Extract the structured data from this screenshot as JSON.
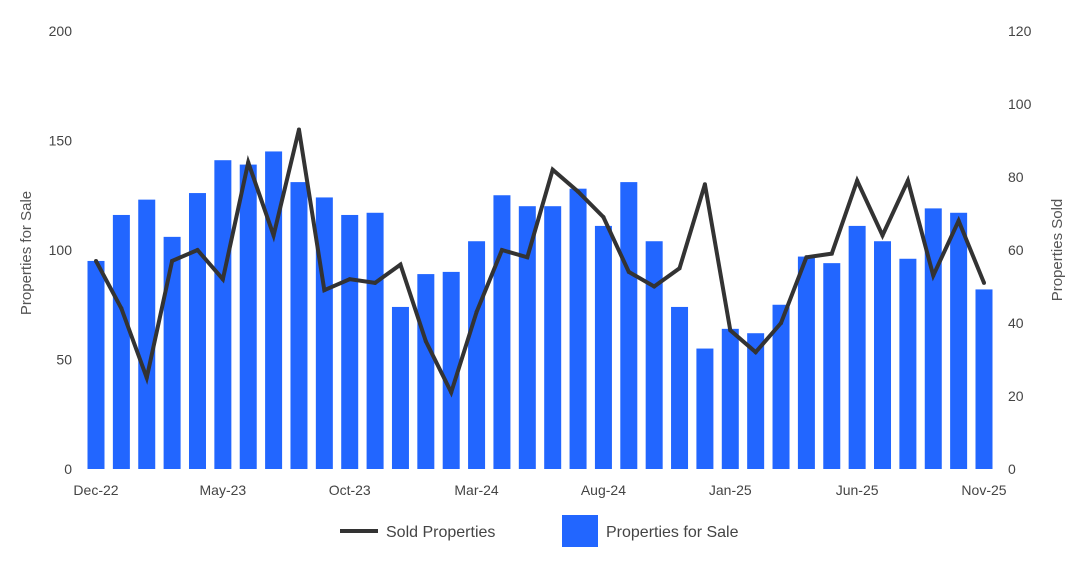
{
  "chart_data": {
    "type": "bar+line",
    "title": "",
    "x_tick_labels": [
      "Dec-22",
      "May-23",
      "Oct-23",
      "Mar-24",
      "Aug-24",
      "Jan-25",
      "Jun-25",
      "Nov-25"
    ],
    "categories": [
      "Dec-22",
      "Jan-23",
      "Feb-23",
      "Mar-23",
      "Apr-23",
      "May-23",
      "Jun-23",
      "Jul-23",
      "Aug-23",
      "Sep-23",
      "Oct-23",
      "Nov-23",
      "Dec-23",
      "Jan-24",
      "Feb-24",
      "Mar-24",
      "Apr-24",
      "May-24",
      "Jun-24",
      "Jul-24",
      "Aug-24",
      "Sep-24",
      "Oct-24",
      "Nov-24",
      "Dec-24",
      "Jan-25",
      "Feb-25",
      "Mar-25",
      "Apr-25",
      "May-25",
      "Jun-25",
      "Jul-25",
      "Aug-25",
      "Sep-25",
      "Oct-25",
      "Nov-25"
    ],
    "series": [
      {
        "name": "Properties for Sale",
        "type": "bar",
        "axis": "left",
        "color": "#2266ff",
        "values": [
          95,
          116,
          123,
          106,
          126,
          141,
          139,
          145,
          131,
          124,
          116,
          117,
          74,
          89,
          90,
          104,
          125,
          120,
          120,
          128,
          111,
          131,
          104,
          74,
          55,
          64,
          62,
          75,
          97,
          94,
          111,
          104,
          96,
          119,
          117,
          82
        ]
      },
      {
        "name": "Sold Properties",
        "type": "line",
        "axis": "right",
        "color": "#333333",
        "values": [
          57,
          44,
          25,
          57,
          60,
          52,
          84,
          64,
          93,
          49,
          52,
          51,
          56,
          35,
          21,
          43,
          60,
          58,
          82,
          76,
          69,
          54,
          50,
          55,
          78,
          38,
          32,
          40,
          58,
          59,
          79,
          64,
          79,
          53,
          68,
          51
        ]
      }
    ],
    "y_left": {
      "label": "Properties for Sale",
      "min": 0,
      "max": 200,
      "ticks": [
        0,
        50,
        100,
        150,
        200
      ]
    },
    "y_right": {
      "label": "Properties Sold",
      "min": 0,
      "max": 120,
      "ticks": [
        0,
        20,
        40,
        60,
        80,
        100,
        120
      ]
    },
    "legend": {
      "position": "bottom",
      "items": [
        {
          "label": "Sold Properties",
          "marker": "line",
          "color": "#333333"
        },
        {
          "label": "Properties for Sale",
          "marker": "box",
          "color": "#2266ff"
        }
      ]
    },
    "grid": false
  }
}
